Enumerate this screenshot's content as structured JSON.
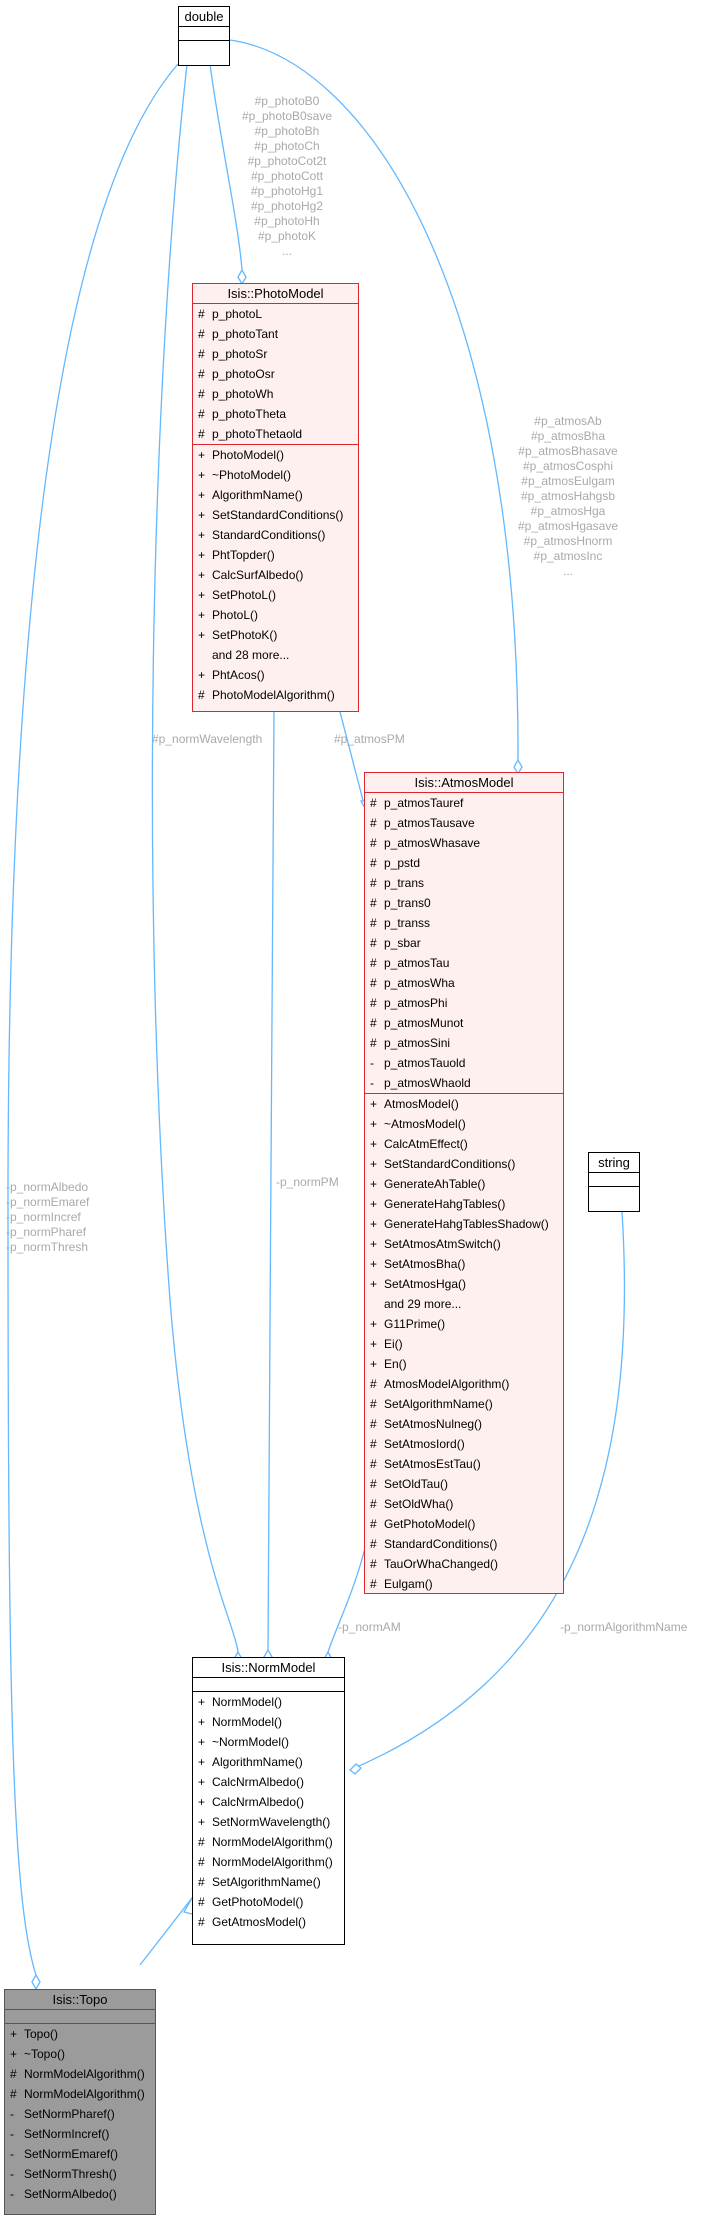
{
  "classes": {
    "double": {
      "name": "double"
    },
    "string": {
      "name": "string"
    },
    "photo": {
      "name": "Isis::PhotoModel",
      "attributes": [
        {
          "vis": "#",
          "name": "p_photoL"
        },
        {
          "vis": "#",
          "name": "p_photoTant"
        },
        {
          "vis": "#",
          "name": "p_photoSr"
        },
        {
          "vis": "#",
          "name": "p_photoOsr"
        },
        {
          "vis": "#",
          "name": "p_photoWh"
        },
        {
          "vis": "#",
          "name": "p_photoTheta"
        },
        {
          "vis": "#",
          "name": "p_photoThetaold"
        }
      ],
      "methods": [
        {
          "vis": "+",
          "name": "PhotoModel()"
        },
        {
          "vis": "+",
          "name": "~PhotoModel()"
        },
        {
          "vis": "+",
          "name": "AlgorithmName()"
        },
        {
          "vis": "+",
          "name": "SetStandardConditions()"
        },
        {
          "vis": "+",
          "name": "StandardConditions()"
        },
        {
          "vis": "+",
          "name": "PhtTopder()"
        },
        {
          "vis": "+",
          "name": "CalcSurfAlbedo()"
        },
        {
          "vis": "+",
          "name": "SetPhotoL()"
        },
        {
          "vis": "+",
          "name": "PhotoL()"
        },
        {
          "vis": "+",
          "name": "SetPhotoK()"
        },
        {
          "vis": "",
          "name": "and 28 more..."
        },
        {
          "vis": "+",
          "name": "PhtAcos()"
        },
        {
          "vis": "#",
          "name": "PhotoModelAlgorithm()"
        }
      ]
    },
    "atmos": {
      "name": "Isis::AtmosModel",
      "attributes": [
        {
          "vis": "#",
          "name": "p_atmosTauref"
        },
        {
          "vis": "#",
          "name": "p_atmosTausave"
        },
        {
          "vis": "#",
          "name": "p_atmosWhasave"
        },
        {
          "vis": "#",
          "name": "p_pstd"
        },
        {
          "vis": "#",
          "name": "p_trans"
        },
        {
          "vis": "#",
          "name": "p_trans0"
        },
        {
          "vis": "#",
          "name": "p_transs"
        },
        {
          "vis": "#",
          "name": "p_sbar"
        },
        {
          "vis": "#",
          "name": "p_atmosTau"
        },
        {
          "vis": "#",
          "name": "p_atmosWha"
        },
        {
          "vis": "#",
          "name": "p_atmosPhi"
        },
        {
          "vis": "#",
          "name": "p_atmosMunot"
        },
        {
          "vis": "#",
          "name": "p_atmosSini"
        },
        {
          "vis": "-",
          "name": "p_atmosTauold"
        },
        {
          "vis": "-",
          "name": "p_atmosWhaold"
        }
      ],
      "methods": [
        {
          "vis": "+",
          "name": "AtmosModel()"
        },
        {
          "vis": "+",
          "name": "~AtmosModel()"
        },
        {
          "vis": "+",
          "name": "CalcAtmEffect()"
        },
        {
          "vis": "+",
          "name": "SetStandardConditions()"
        },
        {
          "vis": "+",
          "name": "GenerateAhTable()"
        },
        {
          "vis": "+",
          "name": "GenerateHahgTables()"
        },
        {
          "vis": "+",
          "name": "GenerateHahgTablesShadow()"
        },
        {
          "vis": "+",
          "name": "SetAtmosAtmSwitch()"
        },
        {
          "vis": "+",
          "name": "SetAtmosBha()"
        },
        {
          "vis": "+",
          "name": "SetAtmosHga()"
        },
        {
          "vis": "",
          "name": "and 29 more..."
        },
        {
          "vis": "+",
          "name": "G11Prime()"
        },
        {
          "vis": "+",
          "name": "Ei()"
        },
        {
          "vis": "+",
          "name": "En()"
        },
        {
          "vis": "#",
          "name": "AtmosModelAlgorithm()"
        },
        {
          "vis": "#",
          "name": "SetAlgorithmName()"
        },
        {
          "vis": "#",
          "name": "SetAtmosNulneg()"
        },
        {
          "vis": "#",
          "name": "SetAtmosIord()"
        },
        {
          "vis": "#",
          "name": "SetAtmosEstTau()"
        },
        {
          "vis": "#",
          "name": "SetOldTau()"
        },
        {
          "vis": "#",
          "name": "SetOldWha()"
        },
        {
          "vis": "#",
          "name": "GetPhotoModel()"
        },
        {
          "vis": "#",
          "name": "StandardConditions()"
        },
        {
          "vis": "#",
          "name": "TauOrWhaChanged()"
        },
        {
          "vis": "#",
          "name": "Eulgam()"
        }
      ]
    },
    "norm": {
      "name": "Isis::NormModel",
      "methods": [
        {
          "vis": "+",
          "name": "NormModel()"
        },
        {
          "vis": "+",
          "name": "NormModel()"
        },
        {
          "vis": "+",
          "name": "~NormModel()"
        },
        {
          "vis": "+",
          "name": "AlgorithmName()"
        },
        {
          "vis": "+",
          "name": "CalcNrmAlbedo()"
        },
        {
          "vis": "+",
          "name": "CalcNrmAlbedo()"
        },
        {
          "vis": "+",
          "name": "SetNormWavelength()"
        },
        {
          "vis": "#",
          "name": "NormModelAlgorithm()"
        },
        {
          "vis": "#",
          "name": "NormModelAlgorithm()"
        },
        {
          "vis": "#",
          "name": "SetAlgorithmName()"
        },
        {
          "vis": "#",
          "name": "GetPhotoModel()"
        },
        {
          "vis": "#",
          "name": "GetAtmosModel()"
        }
      ]
    },
    "topo": {
      "name": "Isis::Topo",
      "methods": [
        {
          "vis": "+",
          "name": "Topo()"
        },
        {
          "vis": "+",
          "name": "~Topo()"
        },
        {
          "vis": "#",
          "name": "NormModelAlgorithm()"
        },
        {
          "vis": "#",
          "name": "NormModelAlgorithm()"
        },
        {
          "vis": "-",
          "name": "SetNormPharef()"
        },
        {
          "vis": "-",
          "name": "SetNormIncref()"
        },
        {
          "vis": "-",
          "name": "SetNormEmaref()"
        },
        {
          "vis": "-",
          "name": "SetNormThresh()"
        },
        {
          "vis": "-",
          "name": "SetNormAlbedo()"
        }
      ]
    }
  },
  "edge_labels": {
    "photo_from_double": [
      "#p_photoB0",
      "#p_photoB0save",
      "#p_photoBh",
      "#p_photoCh",
      "#p_photoCot2t",
      "#p_photoCott",
      "#p_photoHg1",
      "#p_photoHg2",
      "#p_photoHh",
      "#p_photoK",
      "..."
    ],
    "atmos_from_double": [
      "#p_atmosAb",
      "#p_atmosBha",
      "#p_atmosBhasave",
      "#p_atmosCosphi",
      "#p_atmosEulgam",
      "#p_atmosHahgsb",
      "#p_atmosHga",
      "#p_atmosHgasave",
      "#p_atmosHnorm",
      "#p_atmosInc",
      "..."
    ],
    "norm_wavelength": "#p_normWavelength",
    "atmos_pm": "#p_atmosPM",
    "norm_pm": "-p_normPM",
    "norm_am": "-p_normAM",
    "norm_algorithm_name": "-p_normAlgorithmName",
    "topo_from_double": [
      "-p_normAlbedo",
      "-p_normEmaref",
      "-p_normIncref",
      "-p_normPharef",
      "-p_normThresh"
    ]
  },
  "colors": {
    "edge": "#63b8ff",
    "red_border": "#e0262c",
    "red_fill": "#fff0f0",
    "label": "#a9a9a9"
  }
}
